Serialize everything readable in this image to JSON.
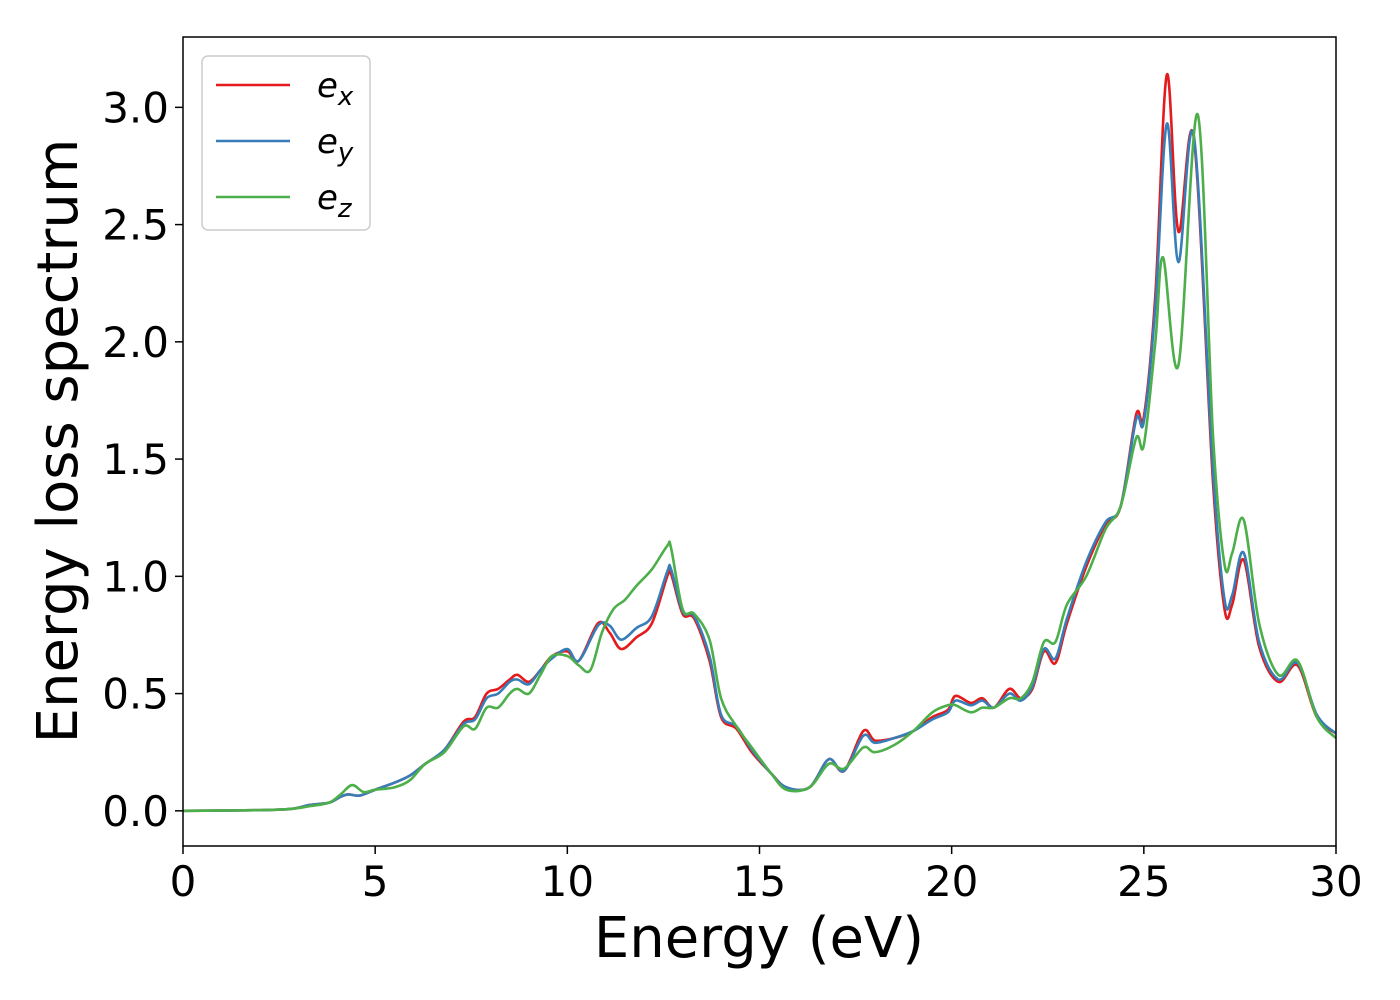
{
  "chart_data": {
    "type": "line",
    "title": "",
    "xlabel": "Energy (eV)",
    "ylabel": "Energy loss spectrum",
    "xlim": [
      0,
      30
    ],
    "ylim": [
      -0.15,
      3.3
    ],
    "xticks": [
      0,
      5,
      10,
      15,
      20,
      25,
      30
    ],
    "yticks": [
      0.0,
      0.5,
      1.0,
      1.5,
      2.0,
      2.5,
      3.0
    ],
    "grid": false,
    "legend_position": "top-left",
    "series": [
      {
        "name": "e",
        "sub": "x",
        "color": "#e41a1c",
        "points": [
          [
            0,
            0
          ],
          [
            2,
            0.003
          ],
          [
            2.8,
            0.008
          ],
          [
            3.3,
            0.025
          ],
          [
            3.8,
            0.035
          ],
          [
            4.1,
            0.06
          ],
          [
            4.3,
            0.07
          ],
          [
            4.6,
            0.065
          ],
          [
            5,
            0.09
          ],
          [
            5.5,
            0.12
          ],
          [
            5.9,
            0.15
          ],
          [
            6.3,
            0.2
          ],
          [
            6.8,
            0.26
          ],
          [
            7.3,
            0.38
          ],
          [
            7.6,
            0.4
          ],
          [
            7.9,
            0.5
          ],
          [
            8.2,
            0.52
          ],
          [
            8.5,
            0.56
          ],
          [
            8.7,
            0.58
          ],
          [
            9.0,
            0.55
          ],
          [
            9.3,
            0.6
          ],
          [
            9.6,
            0.66
          ],
          [
            10.0,
            0.68
          ],
          [
            10.3,
            0.64
          ],
          [
            10.8,
            0.8
          ],
          [
            11.1,
            0.76
          ],
          [
            11.4,
            0.69
          ],
          [
            11.8,
            0.74
          ],
          [
            12.2,
            0.8
          ],
          [
            12.6,
            1.0
          ],
          [
            12.7,
            1.01
          ],
          [
            13.0,
            0.84
          ],
          [
            13.3,
            0.82
          ],
          [
            13.7,
            0.64
          ],
          [
            14.0,
            0.4
          ],
          [
            14.4,
            0.35
          ],
          [
            14.8,
            0.25
          ],
          [
            15.3,
            0.16
          ],
          [
            15.7,
            0.1
          ],
          [
            16.3,
            0.1
          ],
          [
            16.8,
            0.22
          ],
          [
            17.2,
            0.17
          ],
          [
            17.7,
            0.34
          ],
          [
            18.0,
            0.3
          ],
          [
            18.5,
            0.31
          ],
          [
            19.0,
            0.34
          ],
          [
            19.5,
            0.4
          ],
          [
            19.9,
            0.43
          ],
          [
            20.1,
            0.49
          ],
          [
            20.5,
            0.46
          ],
          [
            20.8,
            0.48
          ],
          [
            21.1,
            0.44
          ],
          [
            21.5,
            0.52
          ],
          [
            21.8,
            0.48
          ],
          [
            22.1,
            0.52
          ],
          [
            22.4,
            0.68
          ],
          [
            22.7,
            0.63
          ],
          [
            23.0,
            0.8
          ],
          [
            23.5,
            1.04
          ],
          [
            24.0,
            1.22
          ],
          [
            24.4,
            1.3
          ],
          [
            24.8,
            1.69
          ],
          [
            25.0,
            1.68
          ],
          [
            25.3,
            2.2
          ],
          [
            25.6,
            3.14
          ],
          [
            25.9,
            2.47
          ],
          [
            26.3,
            2.87
          ],
          [
            26.8,
            1.4
          ],
          [
            27.1,
            0.86
          ],
          [
            27.3,
            0.88
          ],
          [
            27.6,
            1.07
          ],
          [
            28.0,
            0.7
          ],
          [
            28.5,
            0.55
          ],
          [
            29.0,
            0.62
          ],
          [
            29.5,
            0.4
          ],
          [
            30.0,
            0.33
          ]
        ]
      },
      {
        "name": "e",
        "sub": "y",
        "color": "#377eb8",
        "points": [
          [
            0,
            0
          ],
          [
            2,
            0.003
          ],
          [
            2.8,
            0.008
          ],
          [
            3.3,
            0.025
          ],
          [
            3.8,
            0.035
          ],
          [
            4.1,
            0.06
          ],
          [
            4.3,
            0.07
          ],
          [
            4.6,
            0.065
          ],
          [
            5,
            0.09
          ],
          [
            5.5,
            0.12
          ],
          [
            5.9,
            0.15
          ],
          [
            6.3,
            0.2
          ],
          [
            6.8,
            0.26
          ],
          [
            7.3,
            0.37
          ],
          [
            7.6,
            0.39
          ],
          [
            7.9,
            0.48
          ],
          [
            8.2,
            0.5
          ],
          [
            8.5,
            0.55
          ],
          [
            8.7,
            0.56
          ],
          [
            9.0,
            0.54
          ],
          [
            9.3,
            0.6
          ],
          [
            9.6,
            0.65
          ],
          [
            10.0,
            0.69
          ],
          [
            10.3,
            0.64
          ],
          [
            10.8,
            0.79
          ],
          [
            11.1,
            0.79
          ],
          [
            11.4,
            0.73
          ],
          [
            11.8,
            0.78
          ],
          [
            12.2,
            0.83
          ],
          [
            12.6,
            1.02
          ],
          [
            12.7,
            1.03
          ],
          [
            13.0,
            0.85
          ],
          [
            13.3,
            0.83
          ],
          [
            13.7,
            0.66
          ],
          [
            14.0,
            0.41
          ],
          [
            14.4,
            0.36
          ],
          [
            14.8,
            0.26
          ],
          [
            15.3,
            0.16
          ],
          [
            15.7,
            0.1
          ],
          [
            16.3,
            0.1
          ],
          [
            16.8,
            0.22
          ],
          [
            17.2,
            0.17
          ],
          [
            17.7,
            0.32
          ],
          [
            18.0,
            0.29
          ],
          [
            18.5,
            0.31
          ],
          [
            19.0,
            0.34
          ],
          [
            19.5,
            0.39
          ],
          [
            19.9,
            0.42
          ],
          [
            20.1,
            0.47
          ],
          [
            20.5,
            0.45
          ],
          [
            20.8,
            0.47
          ],
          [
            21.1,
            0.44
          ],
          [
            21.5,
            0.5
          ],
          [
            21.8,
            0.47
          ],
          [
            22.1,
            0.53
          ],
          [
            22.4,
            0.69
          ],
          [
            22.7,
            0.65
          ],
          [
            23.0,
            0.82
          ],
          [
            23.5,
            1.06
          ],
          [
            24.0,
            1.23
          ],
          [
            24.4,
            1.3
          ],
          [
            24.8,
            1.67
          ],
          [
            25.0,
            1.66
          ],
          [
            25.3,
            2.15
          ],
          [
            25.6,
            2.93
          ],
          [
            25.9,
            2.34
          ],
          [
            26.3,
            2.88
          ],
          [
            26.8,
            1.45
          ],
          [
            27.1,
            0.9
          ],
          [
            27.3,
            0.92
          ],
          [
            27.6,
            1.1
          ],
          [
            28.0,
            0.72
          ],
          [
            28.5,
            0.56
          ],
          [
            29.0,
            0.63
          ],
          [
            29.5,
            0.41
          ],
          [
            30.0,
            0.33
          ]
        ]
      },
      {
        "name": "e",
        "sub": "z",
        "color": "#4daf4a",
        "points": [
          [
            0,
            0
          ],
          [
            2,
            0.003
          ],
          [
            2.8,
            0.008
          ],
          [
            3.3,
            0.02
          ],
          [
            3.8,
            0.035
          ],
          [
            4.1,
            0.07
          ],
          [
            4.4,
            0.11
          ],
          [
            4.7,
            0.08
          ],
          [
            5,
            0.09
          ],
          [
            5.5,
            0.1
          ],
          [
            5.9,
            0.13
          ],
          [
            6.3,
            0.2
          ],
          [
            6.8,
            0.25
          ],
          [
            7.3,
            0.36
          ],
          [
            7.6,
            0.35
          ],
          [
            7.9,
            0.44
          ],
          [
            8.2,
            0.44
          ],
          [
            8.5,
            0.5
          ],
          [
            8.7,
            0.52
          ],
          [
            9.0,
            0.5
          ],
          [
            9.3,
            0.58
          ],
          [
            9.6,
            0.66
          ],
          [
            10.0,
            0.66
          ],
          [
            10.3,
            0.62
          ],
          [
            10.6,
            0.6
          ],
          [
            10.9,
            0.76
          ],
          [
            11.2,
            0.86
          ],
          [
            11.5,
            0.9
          ],
          [
            11.8,
            0.96
          ],
          [
            12.2,
            1.03
          ],
          [
            12.6,
            1.13
          ],
          [
            12.7,
            1.12
          ],
          [
            13.0,
            0.86
          ],
          [
            13.3,
            0.84
          ],
          [
            13.7,
            0.73
          ],
          [
            14.0,
            0.48
          ],
          [
            14.4,
            0.36
          ],
          [
            14.8,
            0.27
          ],
          [
            15.3,
            0.16
          ],
          [
            15.7,
            0.09
          ],
          [
            16.3,
            0.1
          ],
          [
            16.8,
            0.2
          ],
          [
            17.2,
            0.18
          ],
          [
            17.7,
            0.27
          ],
          [
            18.0,
            0.25
          ],
          [
            18.5,
            0.28
          ],
          [
            19.0,
            0.34
          ],
          [
            19.5,
            0.42
          ],
          [
            19.9,
            0.45
          ],
          [
            20.1,
            0.45
          ],
          [
            20.5,
            0.42
          ],
          [
            20.8,
            0.44
          ],
          [
            21.1,
            0.44
          ],
          [
            21.5,
            0.48
          ],
          [
            21.8,
            0.48
          ],
          [
            22.1,
            0.55
          ],
          [
            22.4,
            0.72
          ],
          [
            22.7,
            0.72
          ],
          [
            23.0,
            0.88
          ],
          [
            23.5,
            1.0
          ],
          [
            24.0,
            1.2
          ],
          [
            24.4,
            1.3
          ],
          [
            24.8,
            1.59
          ],
          [
            25.0,
            1.56
          ],
          [
            25.3,
            2.0
          ],
          [
            25.5,
            2.36
          ],
          [
            25.9,
            1.9
          ],
          [
            26.4,
            2.97
          ],
          [
            26.8,
            1.6
          ],
          [
            27.1,
            1.05
          ],
          [
            27.3,
            1.1
          ],
          [
            27.6,
            1.24
          ],
          [
            28.0,
            0.8
          ],
          [
            28.5,
            0.58
          ],
          [
            29.0,
            0.64
          ],
          [
            29.5,
            0.4
          ],
          [
            30.0,
            0.31
          ]
        ]
      }
    ]
  }
}
